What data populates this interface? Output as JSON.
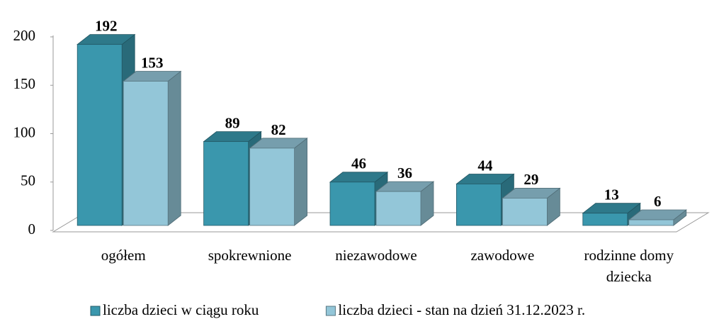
{
  "chart_data": {
    "type": "bar3d",
    "categories": [
      "ogółem",
      "spokrewnione",
      "niezawodowe",
      "zawodowe",
      "rodzinne domy dziecka"
    ],
    "series": [
      {
        "name": "liczba dzieci w ciągu roku",
        "color": "#3a97ad",
        "values": [
          192,
          89,
          46,
          44,
          13
        ]
      },
      {
        "name": "liczba dzieci - stan na dzień 31.12.2023 r.",
        "color": "#93c6d8",
        "values": [
          153,
          82,
          36,
          29,
          6
        ]
      }
    ],
    "ylim": [
      0,
      200
    ],
    "yticks": [
      0,
      50,
      100,
      150,
      200
    ],
    "legend": "bottom"
  }
}
